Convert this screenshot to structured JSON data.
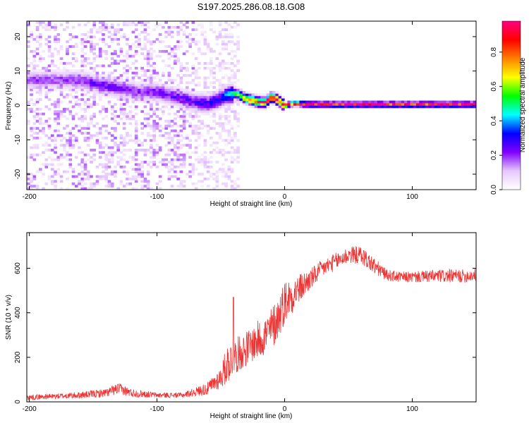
{
  "figure": {
    "title": "S197.2025.286.08.18.G08"
  },
  "chart_data": [
    {
      "type": "heatmap",
      "xlabel": "Height of straight line (km)",
      "ylabel": "Frequency (Hz)",
      "xlim": [
        -202,
        150
      ],
      "ylim": [
        -24.5,
        24.5
      ],
      "x_ticks": [
        -200,
        -100,
        0,
        100
      ],
      "y_ticks": [
        -20,
        -10,
        0,
        10,
        20
      ],
      "grid": false,
      "colorbar": {
        "label": "Normalized spectral amplitude",
        "range": [
          0,
          0.98
        ],
        "ticks": [
          0.0,
          0.2,
          0.4,
          0.6,
          0.8
        ],
        "colormap": [
          "#ffffff",
          "#e6c8ff",
          "#8000ff",
          "#0000ff",
          "#00ffff",
          "#00ff00",
          "#ffff00",
          "#ff8000",
          "#ff0000",
          "#ff0080"
        ]
      },
      "ridge": {
        "x": [
          -175,
          -160,
          -145,
          -130,
          -115,
          -100,
          -90,
          -80,
          -70,
          -60,
          -50,
          -45,
          -40,
          -35,
          -30,
          -25,
          -20,
          -15,
          -10,
          -5,
          0,
          5,
          10,
          20,
          40,
          80,
          120,
          150
        ],
        "y": [
          7.5,
          7.5,
          6,
          5,
          4,
          4,
          3,
          2,
          1,
          0.5,
          2,
          3,
          3.5,
          3,
          2,
          1.5,
          1,
          1,
          2.5,
          1.5,
          0,
          0.5,
          0.5,
          0.3,
          0.3,
          0.3,
          0.3,
          0.3
        ],
        "amp": [
          0.18,
          0.2,
          0.24,
          0.22,
          0.2,
          0.22,
          0.22,
          0.24,
          0.25,
          0.28,
          0.3,
          0.4,
          0.5,
          0.6,
          0.75,
          0.8,
          0.85,
          0.85,
          0.85,
          0.85,
          0.85,
          0.85,
          0.9,
          0.92,
          0.92,
          0.92,
          0.92,
          0.92
        ]
      }
    },
    {
      "type": "line",
      "xlabel": "Height of straight line (km)",
      "ylabel": "SNR (10 * v/v)",
      "xlim": [
        -202,
        150
      ],
      "ylim": [
        0,
        760
      ],
      "x_ticks": [
        -200,
        -100,
        0,
        100
      ],
      "y_ticks": [
        0,
        200,
        400,
        600
      ],
      "grid": false,
      "series": [
        {
          "color": "#ee3333",
          "x": [
            -202,
            -180,
            -160,
            -140,
            -130,
            -120,
            -100,
            -80,
            -70,
            -60,
            -50,
            -45,
            -40,
            -35,
            -30,
            -25,
            -20,
            -15,
            -10,
            -5,
            0,
            10,
            20,
            30,
            40,
            50,
            60,
            70,
            80,
            90,
            100,
            120,
            140,
            150
          ],
          "y": [
            20,
            25,
            30,
            40,
            60,
            40,
            30,
            30,
            45,
            60,
            110,
            170,
            200,
            220,
            240,
            260,
            280,
            300,
            330,
            380,
            450,
            500,
            550,
            600,
            630,
            660,
            660,
            610,
            570,
            560,
            560,
            565,
            565,
            570
          ],
          "noise": [
            12,
            12,
            15,
            20,
            25,
            20,
            12,
            12,
            20,
            30,
            50,
            90,
            80,
            80,
            80,
            80,
            90,
            90,
            100,
            100,
            100,
            70,
            50,
            40,
            40,
            40,
            40,
            40,
            25,
            25,
            25,
            30,
            30,
            30
          ]
        }
      ]
    }
  ]
}
